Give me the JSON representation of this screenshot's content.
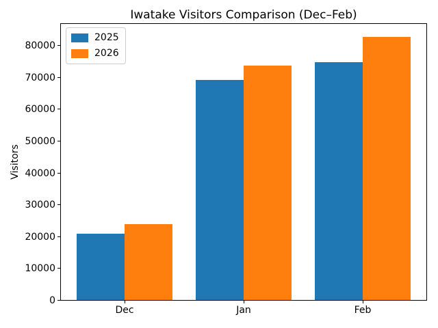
{
  "chart_data": {
    "type": "bar",
    "title": "Iwatake Visitors Comparison (Dec–Feb)",
    "xlabel": "",
    "ylabel": "Visitors",
    "categories": [
      "Dec",
      "Jan",
      "Feb"
    ],
    "series": [
      {
        "name": "2025",
        "color": "#1f77b4",
        "values": [
          21000,
          69500,
          75000
        ]
      },
      {
        "name": "2026",
        "color": "#ff7f0e",
        "values": [
          24000,
          74000,
          83000
        ]
      }
    ],
    "ylim": [
      0,
      87150
    ],
    "yticks": [
      0,
      10000,
      20000,
      30000,
      40000,
      50000,
      60000,
      70000,
      80000
    ],
    "bar_width_units": 0.4,
    "legend_position": "upper left",
    "grid": false,
    "colors": {
      "spine": "#000000",
      "text": "#000000",
      "background": "#ffffff",
      "legend_border": "#cccccc"
    }
  }
}
